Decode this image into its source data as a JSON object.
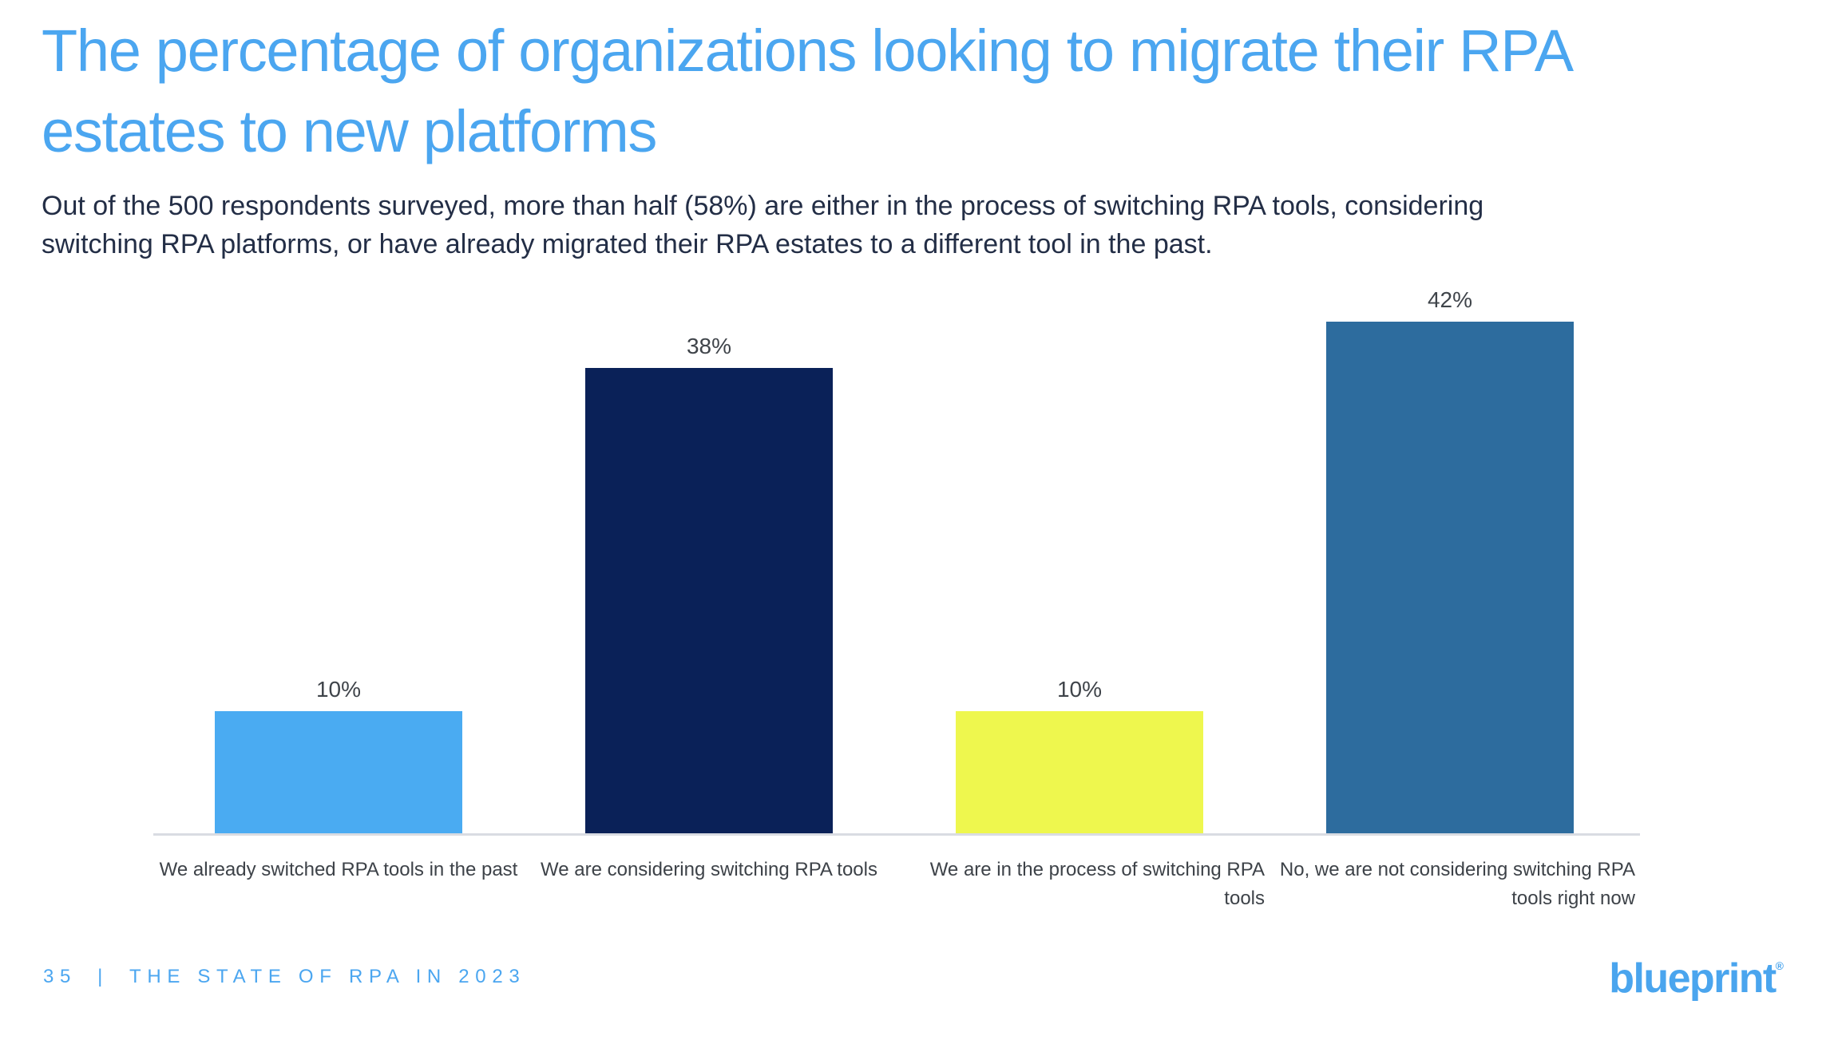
{
  "header": {
    "title": "The percentage of organizations looking to migrate their RPA\nestates to new platforms",
    "subtitle": "Out of the 500 respondents surveyed, more than half (58%) are either in the process of switching RPA tools, considering\nswitching RPA platforms, or have already migrated their RPA estates to a different tool in the past."
  },
  "chart_data": {
    "type": "bar",
    "title": "",
    "xlabel": "",
    "ylabel": "",
    "categories": [
      "We already switched RPA tools in the past",
      "We are considering switching RPA tools",
      "We are in the process of switching RPA\ntools",
      "No, we are not considering switching RPA\ntools right now"
    ],
    "values": [
      10,
      38,
      10,
      42
    ],
    "value_labels": [
      "10%",
      "38%",
      "10%",
      "42%"
    ],
    "bar_colors": [
      "#4aabf2",
      "#0a2158",
      "#eef74e",
      "#2d6c9e"
    ],
    "ylim": [
      0,
      44
    ],
    "grid": "off",
    "legend": "none",
    "axis_line_color": "#d9dce2",
    "label_color": "#3f444a"
  },
  "footer": {
    "page_number": "35",
    "separator": "|",
    "report_title": "THE STATE OF RPA IN 2023",
    "logo_text": "blueprint",
    "logo_mark": "®"
  },
  "colors": {
    "accent_blue": "#4ba6f0",
    "text_dark": "#232e46",
    "background": "#ffffff"
  }
}
